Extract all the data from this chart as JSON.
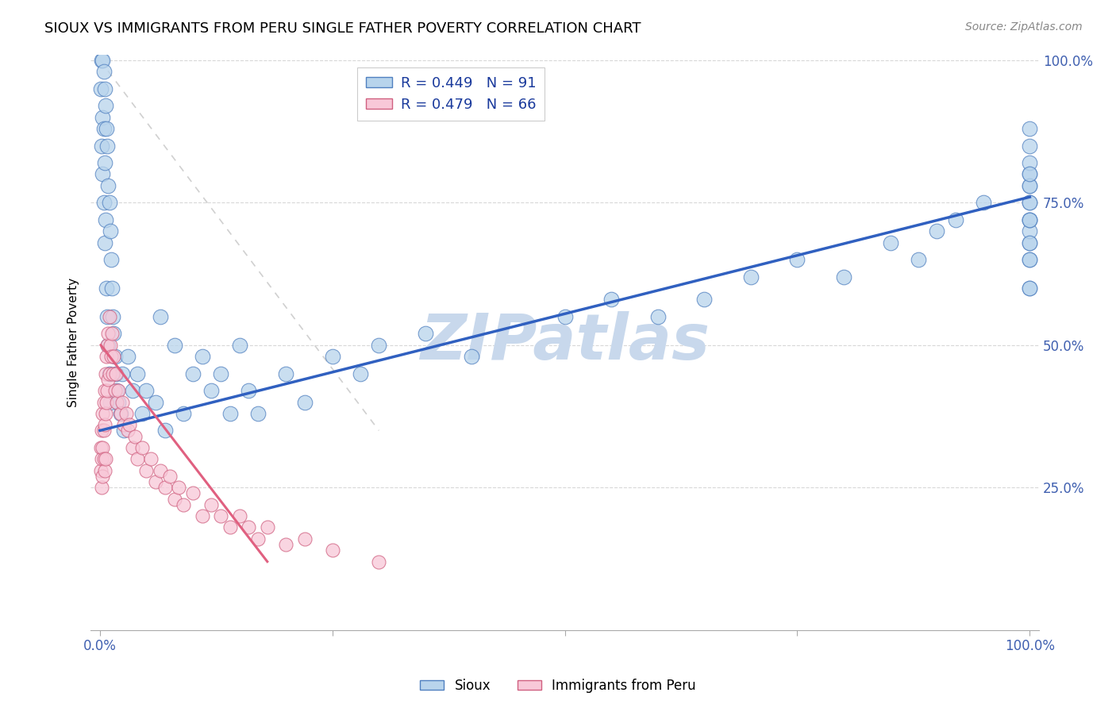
{
  "title": "SIOUX VS IMMIGRANTS FROM PERU SINGLE FATHER POVERTY CORRELATION CHART",
  "source_text": "Source: ZipAtlas.com",
  "ylabel": "Single Father Poverty",
  "legend_sioux": "Sioux",
  "legend_peru": "Immigrants from Peru",
  "r_sioux": 0.449,
  "n_sioux": 91,
  "r_peru": 0.479,
  "n_peru": 66,
  "color_sioux_fill": "#b8d4ec",
  "color_peru_fill": "#f8c8d8",
  "color_sioux_edge": "#5080c0",
  "color_peru_edge": "#d06080",
  "color_sioux_line": "#3060c0",
  "color_peru_line": "#e06080",
  "color_ref_line": "#d0d0d0",
  "watermark": "ZIPatlas",
  "watermark_color": "#c8d8ec",
  "sioux_x": [
    0.001,
    0.002,
    0.002,
    0.003,
    0.003,
    0.003,
    0.004,
    0.004,
    0.004,
    0.005,
    0.005,
    0.005,
    0.006,
    0.006,
    0.007,
    0.007,
    0.008,
    0.008,
    0.009,
    0.009,
    0.01,
    0.01,
    0.011,
    0.011,
    0.012,
    0.013,
    0.014,
    0.015,
    0.016,
    0.017,
    0.018,
    0.02,
    0.022,
    0.024,
    0.026,
    0.03,
    0.035,
    0.04,
    0.045,
    0.05,
    0.06,
    0.065,
    0.07,
    0.08,
    0.09,
    0.1,
    0.11,
    0.12,
    0.13,
    0.14,
    0.15,
    0.16,
    0.17,
    0.2,
    0.22,
    0.25,
    0.28,
    0.3,
    0.35,
    0.4,
    0.5,
    0.55,
    0.6,
    0.65,
    0.7,
    0.75,
    0.8,
    0.85,
    0.88,
    0.9,
    0.92,
    0.95,
    1.0,
    1.0,
    1.0,
    1.0,
    1.0,
    1.0,
    1.0,
    1.0,
    1.0,
    1.0,
    1.0,
    1.0,
    1.0,
    1.0,
    1.0,
    1.0,
    1.0,
    1.0,
    1.0
  ],
  "sioux_y": [
    0.95,
    1.0,
    0.85,
    1.0,
    0.9,
    0.8,
    0.98,
    0.88,
    0.75,
    0.95,
    0.82,
    0.68,
    0.92,
    0.72,
    0.88,
    0.6,
    0.85,
    0.55,
    0.78,
    0.5,
    0.75,
    0.45,
    0.7,
    0.4,
    0.65,
    0.6,
    0.55,
    0.52,
    0.48,
    0.45,
    0.42,
    0.4,
    0.38,
    0.45,
    0.35,
    0.48,
    0.42,
    0.45,
    0.38,
    0.42,
    0.4,
    0.55,
    0.35,
    0.5,
    0.38,
    0.45,
    0.48,
    0.42,
    0.45,
    0.38,
    0.5,
    0.42,
    0.38,
    0.45,
    0.4,
    0.48,
    0.45,
    0.5,
    0.52,
    0.48,
    0.55,
    0.58,
    0.55,
    0.58,
    0.62,
    0.65,
    0.62,
    0.68,
    0.65,
    0.7,
    0.72,
    0.75,
    0.68,
    0.72,
    0.75,
    0.78,
    0.8,
    0.82,
    0.85,
    0.88,
    0.7,
    0.65,
    0.6,
    0.75,
    0.72,
    0.78,
    0.8,
    0.68,
    0.65,
    0.72,
    0.6
  ],
  "peru_x": [
    0.001,
    0.001,
    0.002,
    0.002,
    0.002,
    0.003,
    0.003,
    0.003,
    0.004,
    0.004,
    0.004,
    0.005,
    0.005,
    0.005,
    0.006,
    0.006,
    0.006,
    0.007,
    0.007,
    0.008,
    0.008,
    0.009,
    0.009,
    0.01,
    0.01,
    0.011,
    0.012,
    0.013,
    0.014,
    0.015,
    0.016,
    0.017,
    0.018,
    0.02,
    0.022,
    0.024,
    0.026,
    0.028,
    0.03,
    0.032,
    0.035,
    0.038,
    0.04,
    0.045,
    0.05,
    0.055,
    0.06,
    0.065,
    0.07,
    0.075,
    0.08,
    0.085,
    0.09,
    0.1,
    0.11,
    0.12,
    0.13,
    0.14,
    0.15,
    0.16,
    0.17,
    0.18,
    0.2,
    0.22,
    0.25,
    0.3
  ],
  "peru_y": [
    0.32,
    0.28,
    0.35,
    0.3,
    0.25,
    0.38,
    0.32,
    0.27,
    0.4,
    0.35,
    0.3,
    0.42,
    0.36,
    0.28,
    0.45,
    0.38,
    0.3,
    0.48,
    0.4,
    0.5,
    0.42,
    0.52,
    0.44,
    0.55,
    0.45,
    0.5,
    0.48,
    0.52,
    0.45,
    0.48,
    0.42,
    0.45,
    0.4,
    0.42,
    0.38,
    0.4,
    0.36,
    0.38,
    0.35,
    0.36,
    0.32,
    0.34,
    0.3,
    0.32,
    0.28,
    0.3,
    0.26,
    0.28,
    0.25,
    0.27,
    0.23,
    0.25,
    0.22,
    0.24,
    0.2,
    0.22,
    0.2,
    0.18,
    0.2,
    0.18,
    0.16,
    0.18,
    0.15,
    0.16,
    0.14,
    0.12
  ],
  "sioux_line_x0": 0.0,
  "sioux_line_x1": 1.0,
  "sioux_line_y0": 0.35,
  "sioux_line_y1": 0.76,
  "peru_line_x0": 0.001,
  "peru_line_x1": 0.18,
  "peru_line_y0": 0.5,
  "peru_line_y1": 0.12,
  "ref_line_x0": 0.0,
  "ref_line_x1": 0.3,
  "ref_line_y0": 1.0,
  "ref_line_y1": 0.35,
  "xmin": 0.0,
  "xmax": 1.0,
  "ymin": 0.0,
  "ymax": 1.0,
  "yticks": [
    0.25,
    0.5,
    0.75,
    1.0
  ],
  "ytick_labels": [
    "25.0%",
    "50.0%",
    "75.0%",
    "100.0%"
  ],
  "xtick_labels_left": "0.0%",
  "xtick_labels_right": "100.0%"
}
